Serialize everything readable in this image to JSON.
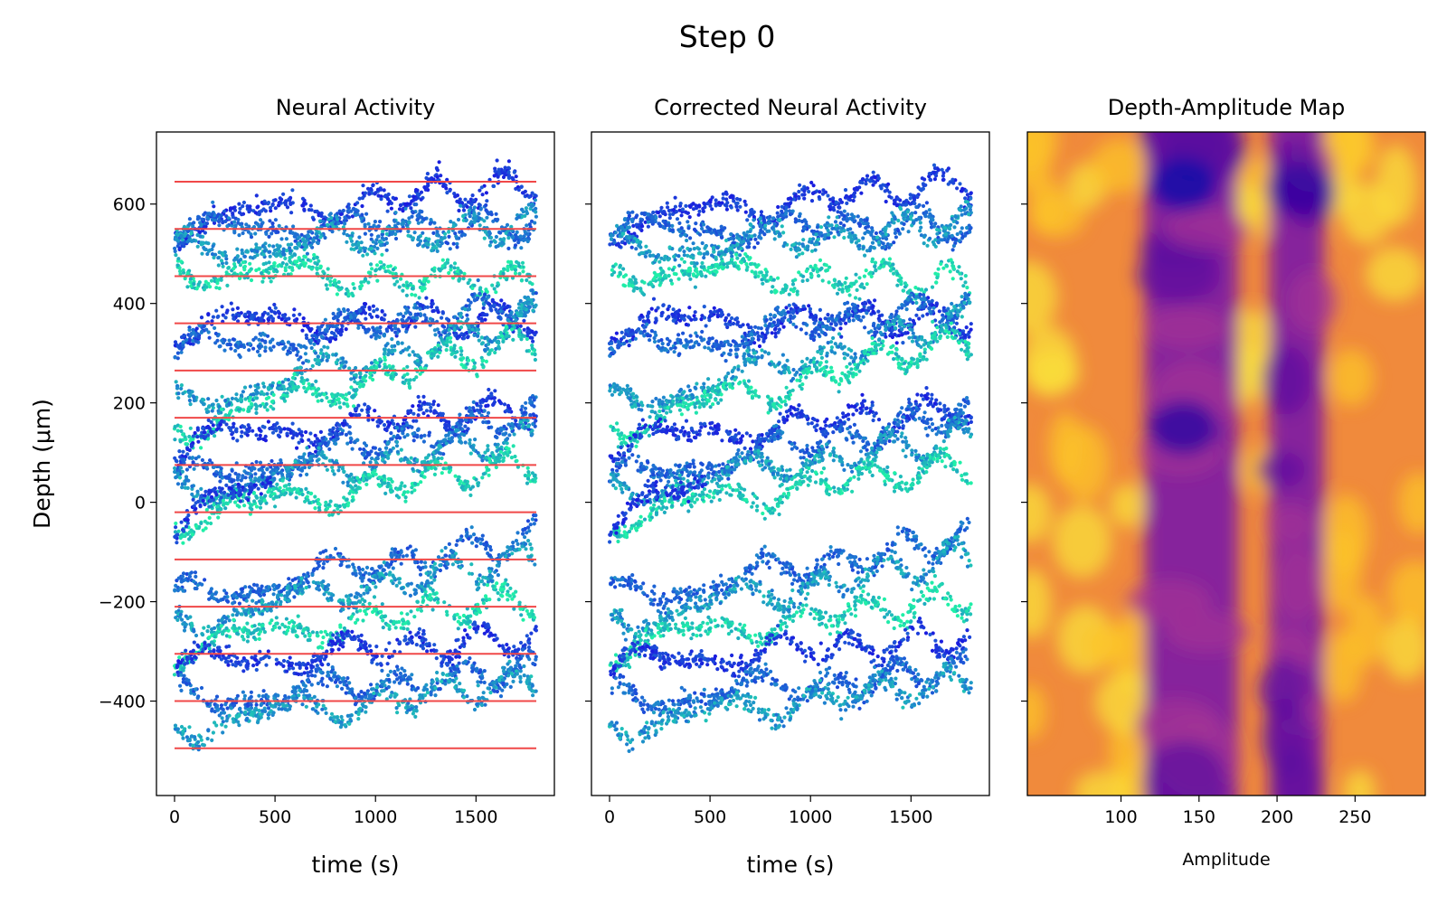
{
  "figure": {
    "suptitle": "Step 0",
    "ylabel": "Depth (μm)",
    "colors": {
      "ref_lines": "#f04848",
      "scatter_low": "#1a1adf",
      "scatter_high": "#20f0a8",
      "heatmap_cmap": "plasma"
    }
  },
  "chart_data": [
    {
      "type": "scatter",
      "title": "Neural Activity",
      "xlabel": "time (s)",
      "ylabel": "Depth (μm)",
      "xlim": [
        -90,
        1890
      ],
      "ylim": [
        -590,
        745
      ],
      "xticks": [
        0,
        500,
        1000,
        1500
      ],
      "xtick_labels": [
        "0",
        "500",
        "1000",
        "1500"
      ],
      "yticks": [
        -400,
        -200,
        0,
        200,
        400,
        600
      ],
      "ytick_labels": [
        "−400",
        "−200",
        "0",
        "200",
        "400",
        "600"
      ],
      "reference_lines": [
        645,
        550,
        455,
        360,
        265,
        170,
        75,
        -20,
        -115,
        -210,
        -305,
        -400,
        -495
      ],
      "reference_x_range": [
        0,
        1800
      ],
      "tracks": [
        {
          "start": 560,
          "end": 645,
          "length": 1800
        },
        {
          "start": 545,
          "end": 560,
          "length": 1800
        },
        {
          "start": 500,
          "end": 560,
          "length": 1800
        },
        {
          "start": 470,
          "end": 440,
          "length": 1800
        },
        {
          "start": 360,
          "end": 370,
          "length": 1800
        },
        {
          "start": 300,
          "end": 400,
          "length": 1800
        },
        {
          "start": 190,
          "end": 370,
          "length": 1800
        },
        {
          "start": 150,
          "end": 330,
          "length": 1800
        },
        {
          "start": 120,
          "end": 190,
          "length": 1800
        },
        {
          "start": 40,
          "end": 180,
          "length": 1800
        },
        {
          "start": 20,
          "end": 130,
          "length": 1800
        },
        {
          "start": -30,
          "end": 80,
          "length": 1800
        },
        {
          "start": -40,
          "end": 40,
          "length": 480
        },
        {
          "start": -200,
          "end": -70,
          "length": 1800
        },
        {
          "start": -240,
          "end": -110,
          "length": 1800
        },
        {
          "start": -290,
          "end": -190,
          "length": 1800
        },
        {
          "start": -330,
          "end": -270,
          "length": 1800
        },
        {
          "start": -400,
          "end": -340,
          "length": 1800
        },
        {
          "start": -450,
          "end": -360,
          "length": 1800
        }
      ]
    },
    {
      "type": "scatter",
      "title": "Corrected Neural Activity",
      "xlabel": "time (s)",
      "xlim": [
        -90,
        1890
      ],
      "ylim": [
        -590,
        745
      ],
      "xticks": [
        0,
        500,
        1000,
        1500
      ],
      "xtick_labels": [
        "0",
        "500",
        "1000",
        "1500"
      ]
    },
    {
      "type": "heatmap",
      "title": "Depth-Amplitude Map",
      "xlabel": "Amplitude",
      "xlim": [
        40,
        295
      ],
      "ylim": [
        -590,
        745
      ],
      "xticks": [
        100,
        150,
        200,
        250
      ],
      "xtick_labels": [
        "100",
        "150",
        "200",
        "250"
      ],
      "colormap": "plasma",
      "dark_bands_amplitude": [
        [
          115,
          175
        ],
        [
          195,
          230
        ]
      ],
      "hotspots": [
        {
          "amplitude": 140,
          "depth": 640
        },
        {
          "amplitude": 215,
          "depth": 630
        },
        {
          "amplitude": 140,
          "depth": 150
        }
      ]
    }
  ]
}
